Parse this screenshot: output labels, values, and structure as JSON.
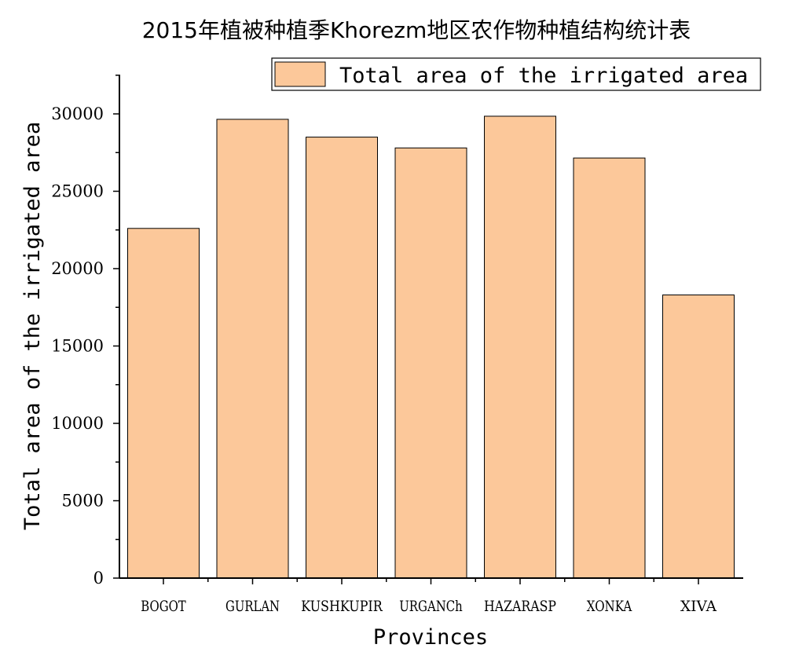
{
  "chart_data": {
    "type": "bar",
    "title": "2015年植被种植季Khorezm地区农作物种植结构统计表",
    "xlabel": "Provinces",
    "ylabel": "Total area of the irrigated area",
    "categories": [
      "BOGOT",
      "GURLAN",
      "KUSHKUPIR",
      "URGANCh",
      "HAZARASP",
      "XONKA",
      "XIVA"
    ],
    "series": [
      {
        "name": "Total area of the irrigated area",
        "values": [
          22600,
          29650,
          28500,
          27800,
          29850,
          27150,
          18300
        ],
        "color": "#FCC89A"
      }
    ],
    "ylim": [
      0,
      30000
    ],
    "yticks": [
      0,
      5000,
      10000,
      15000,
      20000,
      25000,
      30000
    ],
    "ytick_labels": [
      "0",
      "5000",
      "10000",
      "15000",
      "20000",
      "25000",
      "30000"
    ],
    "grid": false,
    "legend_position": "top-right"
  }
}
